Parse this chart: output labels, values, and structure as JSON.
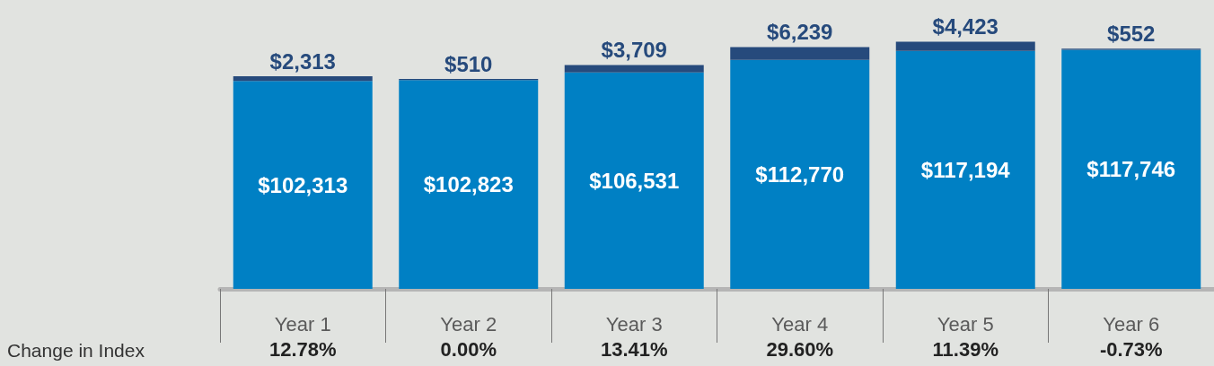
{
  "chart_data": {
    "type": "bar",
    "stacked": true,
    "categories": [
      "Year 1",
      "Year 2",
      "Year 3",
      "Year 4",
      "Year 5",
      "Year 6"
    ],
    "series": [
      {
        "color": "#0080c4",
        "values": [
          102313,
          102823,
          106531,
          112770,
          117194,
          117746
        ],
        "value_labels": [
          "$102,313",
          "$102,823",
          "$106,531",
          "$112,770",
          "$117,194",
          "$117,746"
        ]
      },
      {
        "color": "#264a7c",
        "values": [
          2313,
          510,
          3709,
          6239,
          4423,
          552
        ],
        "value_labels": [
          "$2,313",
          "$510",
          "$3,709",
          "$6,239",
          "$4,423",
          "$552"
        ]
      }
    ],
    "grid": false,
    "annotations": [
      "Change in Index",
      "12.78%",
      "0.00%",
      "13.41%",
      "29.60%",
      "11.39%",
      "-0.73%"
    ]
  }
}
